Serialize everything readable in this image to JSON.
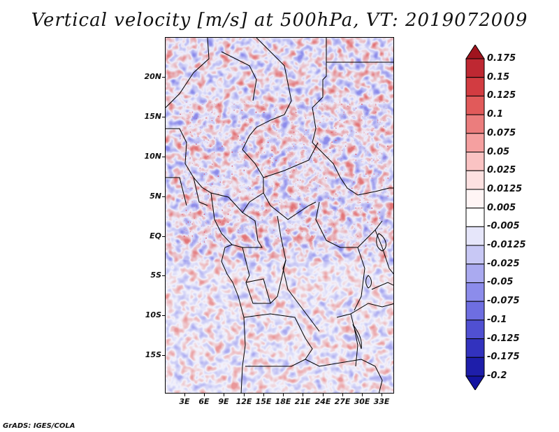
{
  "title": "Vertical velocity [m/s] at 500hPa, VT: 2019072009",
  "credit": "GrADS: IGES/COLA",
  "map": {
    "variable": "vertical velocity",
    "level": "500hPa",
    "lat_labels": [
      "20N",
      "15N",
      "10N",
      "5N",
      "EQ",
      "5S",
      "10S",
      "15S"
    ],
    "lon_labels": [
      "3E",
      "6E",
      "9E",
      "12E",
      "15E",
      "18E",
      "21E",
      "24E",
      "27E",
      "30E",
      "33E"
    ]
  },
  "colorbar": {
    "labels": [
      "0.175",
      "0.15",
      "0.125",
      "0.1",
      "0.075",
      "0.05",
      "0.025",
      "0.0125",
      "0.005",
      "-0.005",
      "-0.0125",
      "-0.025",
      "-0.05",
      "-0.075",
      "-0.1",
      "-0.125",
      "-0.175",
      "-0.2"
    ],
    "colors": [
      "#a0141e",
      "#be2832",
      "#d23c41",
      "#e15a5a",
      "#eb7d7d",
      "#f5a0a0",
      "#fac3c3",
      "#fde1e1",
      "#fff5f5",
      "#ffffff",
      "#e6e6fa",
      "#c8c8f5",
      "#aaaaf0",
      "#8c8ceb",
      "#6e6ee1",
      "#5050d2",
      "#3232be",
      "#1e1eaa",
      "#1414a0"
    ]
  }
}
